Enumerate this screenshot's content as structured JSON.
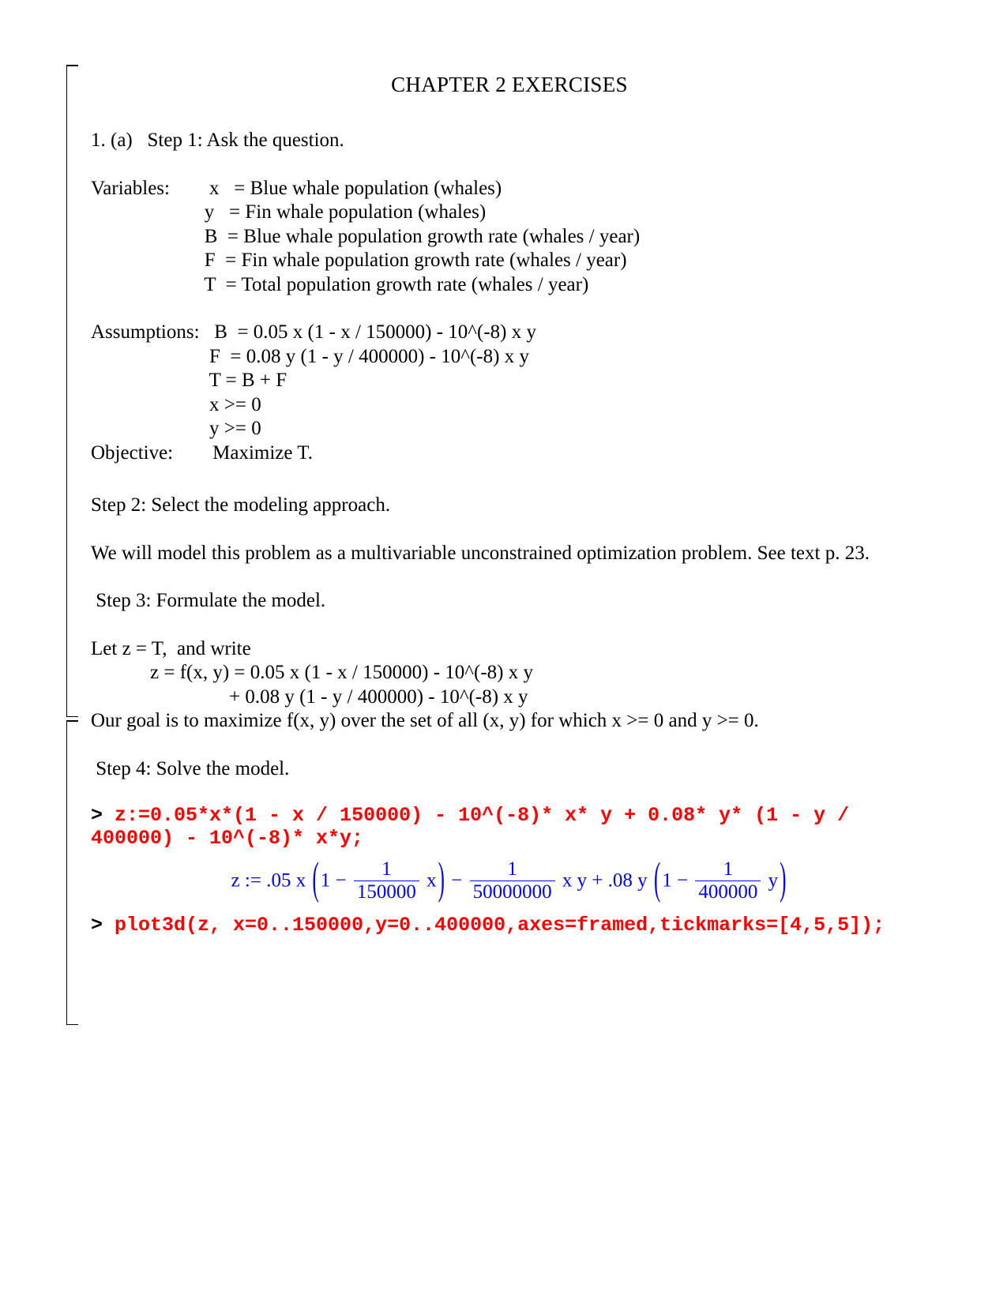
{
  "title": "CHAPTER 2 EXERCISES",
  "step1_heading": "1. (a)   Step 1: Ask the question.",
  "variables": {
    "label": "Variables:",
    "x": "x   = Blue whale population (whales)",
    "y": "y   = Fin whale population (whales)",
    "B": "B  = Blue whale population growth rate (whales / year)",
    "F": "F  = Fin whale population growth rate (whales / year)",
    "T": "T  = Total population growth rate (whales / year)"
  },
  "assumptions": {
    "label": "Assumptions:",
    "B": "B  = 0.05 x (1 - x / 150000) - 10^(-8) x y",
    "F": "F  = 0.08 y (1 - y / 400000) - 10^(-8) x y",
    "T": "T = B + F",
    "x": "x >= 0",
    "y": "y >= 0"
  },
  "objective": {
    "label": "Objective:",
    "text": "Maximize T."
  },
  "step2_heading": "Step 2: Select the modeling approach.",
  "step2_text": "We will model this problem as a multivariable unconstrained optimization problem.  See text p. 23.",
  "step3_heading": " Step 3: Formulate the model.",
  "step3_let": "Let z = T,  and write",
  "step3_eq1": "            z = f(x, y) = 0.05 x (1 - x / 150000) - 10^(-8) x y",
  "step3_eq2": "                            + 0.08 y (1 - y / 400000) - 10^(-8) x y",
  "step3_goal": "Our goal is to maximize f(x, y) over the set of all (x, y) for which x >= 0 and y >= 0.",
  "step4_heading": " Step 4: Solve the model.",
  "code1_prompt": "> ",
  "code1_body": "z:=0.05*x*(1 - x / 150000) - 10^(-8)* x* y + 0.08* y* (1 - y / 400000) - 10^(-8)* x*y;",
  "math_output": {
    "prefix": "z := .05 x",
    "frac1_num": "1",
    "frac1_den": "150000",
    "after_frac1": "x",
    "frac2_num": "1",
    "frac2_den": "50000000",
    "after_frac2": "x y + .08 y",
    "frac3_num": "1",
    "frac3_den": "400000",
    "after_frac3": "y"
  },
  "code2_prompt": "> ",
  "code2_body": "plot3d(z, x=0..150000,y=0..400000,axes=framed,tickmarks=[4,5,5]);",
  "colors": {
    "code": "#ff0000",
    "math": "#0000ff",
    "text": "#000000"
  }
}
